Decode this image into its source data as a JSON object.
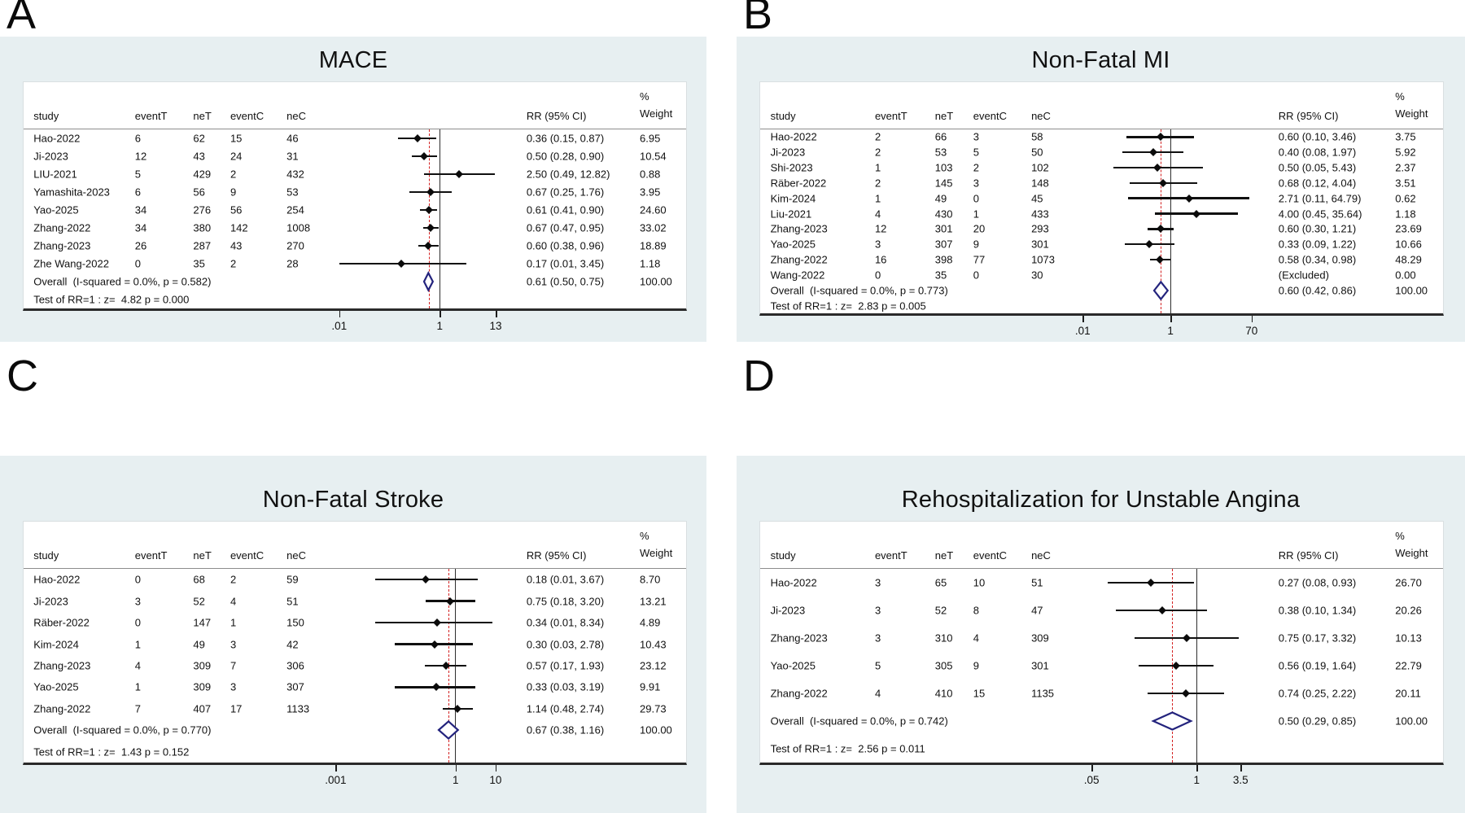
{
  "columns": {
    "study": "study",
    "eventT": "eventT",
    "neT": "neT",
    "eventC": "eventC",
    "neC": "neC",
    "rr": "RR (95% CI)",
    "weight_pct": "%",
    "weight": "Weight"
  },
  "colors": {
    "panel_bg": "#e7eff1",
    "box_border": "#d9dfe1",
    "header_rule": "#8d8d8d",
    "axis_line": "#2a2a2a",
    "null_line": "#2e2e2e",
    "overall_dash_line": "#d42222",
    "marker": "#0b0b0b",
    "diamond_stroke": "#23237d"
  },
  "chart_data": [
    {
      "type": "scatter",
      "variant": "forest-plot",
      "panel_label": "A",
      "title": "MACE",
      "x_scale": "log10",
      "x_range_log10": [
        -2.35,
        1.55
      ],
      "null_value": 1,
      "overall_line_value": 0.61,
      "x_ticks": [
        {
          "value": 0.01,
          "label": ".01"
        },
        {
          "value": 1,
          "label": "1"
        },
        {
          "value": 13,
          "label": "13"
        }
      ],
      "studies": [
        {
          "study": "Hao-2022",
          "eventT": "6",
          "neT": "62",
          "eventC": "15",
          "neC": "46",
          "rr": 0.36,
          "ci_low": 0.15,
          "ci_high": 0.87,
          "rr_text": "0.36 (0.15, 0.87)",
          "weight": "6.95"
        },
        {
          "study": "Ji-2023",
          "eventT": "12",
          "neT": "43",
          "eventC": "24",
          "neC": "31",
          "rr": 0.5,
          "ci_low": 0.28,
          "ci_high": 0.9,
          "rr_text": "0.50 (0.28, 0.90)",
          "weight": "10.54"
        },
        {
          "study": "LIU-2021",
          "eventT": "5",
          "neT": "429",
          "eventC": "2",
          "neC": "432",
          "rr": 2.5,
          "ci_low": 0.49,
          "ci_high": 12.82,
          "rr_text": "2.50 (0.49, 12.82)",
          "weight": "0.88"
        },
        {
          "study": "Yamashita-2023",
          "eventT": "6",
          "neT": "56",
          "eventC": "9",
          "neC": "53",
          "rr": 0.67,
          "ci_low": 0.25,
          "ci_high": 1.76,
          "rr_text": "0.67 (0.25, 1.76)",
          "weight": "3.95"
        },
        {
          "study": "Yao-2025",
          "eventT": "34",
          "neT": "276",
          "eventC": "56",
          "neC": "254",
          "rr": 0.61,
          "ci_low": 0.41,
          "ci_high": 0.9,
          "rr_text": "0.61 (0.41, 0.90)",
          "weight": "24.60"
        },
        {
          "study": "Zhang-2022",
          "eventT": "34",
          "neT": "380",
          "eventC": "142",
          "neC": "1008",
          "rr": 0.67,
          "ci_low": 0.47,
          "ci_high": 0.95,
          "rr_text": "0.67 (0.47, 0.95)",
          "weight": "33.02"
        },
        {
          "study": "Zhang-2023",
          "eventT": "26",
          "neT": "287",
          "eventC": "43",
          "neC": "270",
          "rr": 0.6,
          "ci_low": 0.38,
          "ci_high": 0.96,
          "rr_text": "0.60 (0.38, 0.96)",
          "weight": "18.89"
        },
        {
          "study": "Zhe Wang-2022",
          "eventT": "0",
          "neT": "35",
          "eventC": "2",
          "neC": "28",
          "rr": 0.17,
          "ci_low": 0.01,
          "ci_high": 3.45,
          "rr_text": "0.17 (0.01, 3.45)",
          "weight": "1.18"
        }
      ],
      "overall": {
        "label": "Overall  (I-squared = 0.0%, p = 0.582)",
        "rr": 0.61,
        "ci_low": 0.5,
        "ci_high": 0.75,
        "rr_text": "0.61 (0.50, 0.75)",
        "weight": "100.00"
      },
      "test_line": "Test of RR=1 : z=  4.82 p = 0.000"
    },
    {
      "type": "scatter",
      "variant": "forest-plot",
      "panel_label": "B",
      "title": "Non-Fatal MI",
      "x_scale": "log10",
      "x_range_log10": [
        -2.35,
        2.25
      ],
      "null_value": 1,
      "overall_line_value": 0.6,
      "x_ticks": [
        {
          "value": 0.01,
          "label": ".01"
        },
        {
          "value": 1,
          "label": "1"
        },
        {
          "value": 70,
          "label": "70"
        }
      ],
      "studies": [
        {
          "study": "Hao-2022",
          "eventT": "2",
          "neT": "66",
          "eventC": "3",
          "neC": "58",
          "rr": 0.6,
          "ci_low": 0.1,
          "ci_high": 3.46,
          "rr_text": "0.60 (0.10, 3.46)",
          "weight": "3.75"
        },
        {
          "study": "Ji-2023",
          "eventT": "2",
          "neT": "53",
          "eventC": "5",
          "neC": "50",
          "rr": 0.4,
          "ci_low": 0.08,
          "ci_high": 1.97,
          "rr_text": "0.40 (0.08, 1.97)",
          "weight": "5.92"
        },
        {
          "study": "Shi-2023",
          "eventT": "1",
          "neT": "103",
          "eventC": "2",
          "neC": "102",
          "rr": 0.5,
          "ci_low": 0.05,
          "ci_high": 5.43,
          "rr_text": "0.50 (0.05, 5.43)",
          "weight": "2.37"
        },
        {
          "study": "Räber-2022",
          "eventT": "2",
          "neT": "145",
          "eventC": "3",
          "neC": "148",
          "rr": 0.68,
          "ci_low": 0.12,
          "ci_high": 4.04,
          "rr_text": "0.68 (0.12, 4.04)",
          "weight": "3.51"
        },
        {
          "study": "Kim-2024",
          "eventT": "1",
          "neT": "49",
          "eventC": "0",
          "neC": "45",
          "rr": 2.71,
          "ci_low": 0.11,
          "ci_high": 64.79,
          "rr_text": "2.71 (0.11, 64.79)",
          "weight": "0.62"
        },
        {
          "study": "Liu-2021",
          "eventT": "4",
          "neT": "430",
          "eventC": "1",
          "neC": "433",
          "rr": 4.0,
          "ci_low": 0.45,
          "ci_high": 35.64,
          "rr_text": "4.00 (0.45, 35.64)",
          "weight": "1.18"
        },
        {
          "study": "Zhang-2023",
          "eventT": "12",
          "neT": "301",
          "eventC": "20",
          "neC": "293",
          "rr": 0.6,
          "ci_low": 0.3,
          "ci_high": 1.21,
          "rr_text": "0.60 (0.30, 1.21)",
          "weight": "23.69"
        },
        {
          "study": "Yao-2025",
          "eventT": "3",
          "neT": "307",
          "eventC": "9",
          "neC": "301",
          "rr": 0.33,
          "ci_low": 0.09,
          "ci_high": 1.22,
          "rr_text": "0.33 (0.09, 1.22)",
          "weight": "10.66"
        },
        {
          "study": "Zhang-2022",
          "eventT": "16",
          "neT": "398",
          "eventC": "77",
          "neC": "1073",
          "rr": 0.58,
          "ci_low": 0.34,
          "ci_high": 0.98,
          "rr_text": "0.58 (0.34, 0.98)",
          "weight": "48.29"
        },
        {
          "study": "Wang-2022",
          "eventT": "0",
          "neT": "35",
          "eventC": "0",
          "neC": "30",
          "rr": null,
          "ci_low": null,
          "ci_high": null,
          "rr_text": "(Excluded)",
          "weight": "0.00",
          "excluded": true
        }
      ],
      "overall": {
        "label": "Overall  (I-squared = 0.0%, p = 0.773)",
        "rr": 0.6,
        "ci_low": 0.42,
        "ci_high": 0.86,
        "rr_text": "0.60 (0.42, 0.86)",
        "weight": "100.00"
      },
      "test_line": "Test of RR=1 : z=  2.83 p = 0.005"
    },
    {
      "type": "scatter",
      "variant": "forest-plot",
      "panel_label": "C",
      "title": "Non-Fatal Stroke",
      "x_scale": "log10",
      "x_range_log10": [
        -3.35,
        1.55
      ],
      "null_value": 1,
      "overall_line_value": 0.67,
      "x_ticks": [
        {
          "value": 0.001,
          "label": ".001"
        },
        {
          "value": 1,
          "label": "1"
        },
        {
          "value": 10,
          "label": "10"
        }
      ],
      "studies": [
        {
          "study": "Hao-2022",
          "eventT": "0",
          "neT": "68",
          "eventC": "2",
          "neC": "59",
          "rr": 0.18,
          "ci_low": 0.01,
          "ci_high": 3.67,
          "rr_text": "0.18 (0.01, 3.67)",
          "weight": "8.70"
        },
        {
          "study": "Ji-2023",
          "eventT": "3",
          "neT": "52",
          "eventC": "4",
          "neC": "51",
          "rr": 0.75,
          "ci_low": 0.18,
          "ci_high": 3.2,
          "rr_text": "0.75 (0.18, 3.20)",
          "weight": "13.21"
        },
        {
          "study": "Räber-2022",
          "eventT": "0",
          "neT": "147",
          "eventC": "1",
          "neC": "150",
          "rr": 0.34,
          "ci_low": 0.01,
          "ci_high": 8.34,
          "rr_text": "0.34 (0.01, 8.34)",
          "weight": "4.89"
        },
        {
          "study": "Kim-2024",
          "eventT": "1",
          "neT": "49",
          "eventC": "3",
          "neC": "42",
          "rr": 0.3,
          "ci_low": 0.03,
          "ci_high": 2.78,
          "rr_text": "0.30 (0.03, 2.78)",
          "weight": "10.43"
        },
        {
          "study": "Zhang-2023",
          "eventT": "4",
          "neT": "309",
          "eventC": "7",
          "neC": "306",
          "rr": 0.57,
          "ci_low": 0.17,
          "ci_high": 1.93,
          "rr_text": "0.57 (0.17, 1.93)",
          "weight": "23.12"
        },
        {
          "study": "Yao-2025",
          "eventT": "1",
          "neT": "309",
          "eventC": "3",
          "neC": "307",
          "rr": 0.33,
          "ci_low": 0.03,
          "ci_high": 3.19,
          "rr_text": "0.33 (0.03, 3.19)",
          "weight": "9.91"
        },
        {
          "study": "Zhang-2022",
          "eventT": "7",
          "neT": "407",
          "eventC": "17",
          "neC": "1133",
          "rr": 1.14,
          "ci_low": 0.48,
          "ci_high": 2.74,
          "rr_text": "1.14 (0.48, 2.74)",
          "weight": "29.73"
        }
      ],
      "overall": {
        "label": "Overall  (I-squared = 0.0%, p = 0.770)",
        "rr": 0.67,
        "ci_low": 0.38,
        "ci_high": 1.16,
        "rr_text": "0.67 (0.38, 1.16)",
        "weight": "100.00"
      },
      "test_line": "Test of RR=1 : z=  1.43 p = 0.152"
    },
    {
      "type": "scatter",
      "variant": "forest-plot",
      "panel_label": "D",
      "title": "Rehospitalization for Unstable Angina",
      "x_scale": "log10",
      "x_range_log10": [
        -1.6,
        0.9
      ],
      "null_value": 1,
      "overall_line_value": 0.5,
      "x_ticks": [
        {
          "value": 0.05,
          "label": ".05"
        },
        {
          "value": 1,
          "label": "1"
        },
        {
          "value": 3.5,
          "label": "3.5"
        }
      ],
      "studies": [
        {
          "study": "Hao-2022",
          "eventT": "3",
          "neT": "65",
          "eventC": "10",
          "neC": "51",
          "rr": 0.27,
          "ci_low": 0.08,
          "ci_high": 0.93,
          "rr_text": "0.27 (0.08, 0.93)",
          "weight": "26.70"
        },
        {
          "study": "Ji-2023",
          "eventT": "3",
          "neT": "52",
          "eventC": "8",
          "neC": "47",
          "rr": 0.38,
          "ci_low": 0.1,
          "ci_high": 1.34,
          "rr_text": "0.38 (0.10, 1.34)",
          "weight": "20.26"
        },
        {
          "study": "Zhang-2023",
          "eventT": "3",
          "neT": "310",
          "eventC": "4",
          "neC": "309",
          "rr": 0.75,
          "ci_low": 0.17,
          "ci_high": 3.32,
          "rr_text": "0.75 (0.17, 3.32)",
          "weight": "10.13"
        },
        {
          "study": "Yao-2025",
          "eventT": "5",
          "neT": "305",
          "eventC": "9",
          "neC": "301",
          "rr": 0.56,
          "ci_low": 0.19,
          "ci_high": 1.64,
          "rr_text": "0.56 (0.19, 1.64)",
          "weight": "22.79"
        },
        {
          "study": "Zhang-2022",
          "eventT": "4",
          "neT": "410",
          "eventC": "15",
          "neC": "1135",
          "rr": 0.74,
          "ci_low": 0.25,
          "ci_high": 2.22,
          "rr_text": "0.74 (0.25, 2.22)",
          "weight": "20.11"
        }
      ],
      "overall": {
        "label": "Overall  (I-squared = 0.0%, p = 0.742)",
        "rr": 0.5,
        "ci_low": 0.29,
        "ci_high": 0.85,
        "rr_text": "0.50 (0.29, 0.85)",
        "weight": "100.00"
      },
      "test_line": "Test of RR=1 : z=  2.56 p = 0.011"
    }
  ]
}
